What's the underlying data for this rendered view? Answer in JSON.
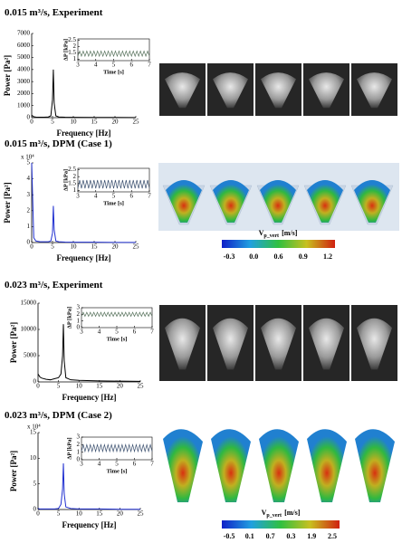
{
  "chart_data": [
    {
      "type": "line",
      "title": "0.015 m³/s, Experiment",
      "xlabel": "Frequency [Hz]",
      "ylabel": "Power [Pa²]",
      "x": [
        0,
        0.5,
        1,
        2,
        3,
        4,
        4.6,
        5.0,
        5.2,
        5.4,
        5.8,
        6.5,
        8,
        10,
        15,
        20,
        25
      ],
      "series": [
        {
          "color": "#000000",
          "values": [
            200,
            80,
            50,
            40,
            40,
            60,
            150,
            1500,
            4000,
            1200,
            150,
            60,
            40,
            30,
            20,
            15,
            10
          ]
        }
      ],
      "xlim": [
        0,
        25
      ],
      "xticks": [
        0,
        5,
        10,
        15,
        20,
        25
      ],
      "ylim": [
        0,
        7000
      ],
      "yticks": [
        0,
        1000,
        2000,
        3000,
        4000,
        5000,
        6000,
        7000
      ]
    },
    {
      "type": "line",
      "xlabel": "Time [s]",
      "ylabel": "ΔP [kPa]",
      "x": [
        3,
        3.1,
        3.2,
        3.3,
        3.4,
        3.5,
        3.6,
        3.7,
        3.8,
        3.9,
        4,
        4.1,
        4.2,
        4.3,
        4.4,
        4.5,
        4.6,
        4.7,
        4.8,
        4.9,
        5,
        5.1,
        5.2,
        5.3,
        5.4,
        5.5,
        5.6,
        5.7,
        5.8,
        5.9,
        6,
        6.1,
        6.2,
        6.3,
        6.4,
        6.5,
        6.6,
        6.7,
        6.8,
        6.9,
        7
      ],
      "series": [
        {
          "color": "#55705a",
          "values": [
            1.25,
            1.65,
            1.25,
            1.65,
            1.25,
            1.65,
            1.25,
            1.65,
            1.25,
            1.65,
            1.25,
            1.65,
            1.25,
            1.65,
            1.25,
            1.65,
            1.25,
            1.65,
            1.25,
            1.65,
            1.25,
            1.65,
            1.25,
            1.65,
            1.25,
            1.65,
            1.25,
            1.65,
            1.25,
            1.65,
            1.25,
            1.65,
            1.25,
            1.65,
            1.25,
            1.65,
            1.25,
            1.65,
            1.25,
            1.65,
            1.25
          ]
        }
      ],
      "xlim": [
        3,
        7
      ],
      "xticks": [
        3,
        4,
        5,
        6,
        7
      ],
      "ylim": [
        0.9,
        2.6
      ],
      "yticks": [
        1,
        1.5,
        2,
        2.5
      ]
    },
    {
      "type": "line",
      "title": "0.015 m³/s, DPM (Case 1)",
      "xlabel": "Frequency [Hz]",
      "ylabel": "Power [Pa²]",
      "y_multiplier": "x 10⁴",
      "x": [
        0,
        0.5,
        1,
        2,
        3,
        4,
        4.6,
        5.0,
        5.2,
        5.4,
        5.8,
        6.5,
        8,
        10,
        15,
        20,
        25
      ],
      "series": [
        {
          "color": "#1f2fd0",
          "values": [
            5,
            0.3,
            0.1,
            0.05,
            0.05,
            0.05,
            0.1,
            0.6,
            2.3,
            0.8,
            0.1,
            0.05,
            0.03,
            0.02,
            0.02,
            0.01,
            0.01
          ]
        }
      ],
      "xlim": [
        0,
        25
      ],
      "xticks": [
        0,
        5,
        10,
        15,
        20,
        25
      ],
      "ylim": [
        0,
        5
      ],
      "yticks": [
        0,
        1,
        2,
        3,
        4,
        5
      ]
    },
    {
      "type": "line",
      "xlabel": "Time [s]",
      "ylabel": "ΔP [kPa]",
      "x": [
        3,
        3.1,
        3.2,
        3.3,
        3.4,
        3.5,
        3.6,
        3.7,
        3.8,
        3.9,
        4,
        4.1,
        4.2,
        4.3,
        4.4,
        4.5,
        4.6,
        4.7,
        4.8,
        4.9,
        5,
        5.1,
        5.2,
        5.3,
        5.4,
        5.5,
        5.6,
        5.7,
        5.8,
        5.9,
        6,
        6.1,
        6.2,
        6.3,
        6.4,
        6.5,
        6.6,
        6.7,
        6.8,
        6.9,
        7
      ],
      "series": [
        {
          "color": "#3a4f6e",
          "values": [
            1.15,
            1.75,
            1.15,
            1.75,
            1.15,
            1.75,
            1.15,
            1.75,
            1.15,
            1.75,
            1.15,
            1.75,
            1.15,
            1.75,
            1.15,
            1.75,
            1.15,
            1.75,
            1.15,
            1.75,
            1.15,
            1.75,
            1.15,
            1.75,
            1.15,
            1.75,
            1.15,
            1.75,
            1.15,
            1.75,
            1.15,
            1.75,
            1.15,
            1.75,
            1.15,
            1.75,
            1.15,
            1.75,
            1.15,
            1.75,
            1.15
          ]
        }
      ],
      "xlim": [
        3,
        7
      ],
      "xticks": [
        3,
        4,
        5,
        6,
        7
      ],
      "ylim": [
        0.9,
        2.6
      ],
      "yticks": [
        1,
        1.5,
        2,
        2.5
      ]
    },
    {
      "type": "line",
      "title": "0.023 m³/s, Experiment",
      "xlabel": "Frequency [Hz]",
      "ylabel": "Power [Pa²]",
      "x": [
        0,
        0.5,
        1,
        2,
        3,
        4,
        5,
        5.6,
        6,
        6.2,
        6.4,
        6.8,
        8,
        10,
        15,
        20,
        25
      ],
      "series": [
        {
          "color": "#000000",
          "values": [
            1500,
            900,
            700,
            500,
            400,
            600,
            800,
            1500,
            5000,
            11000,
            4000,
            800,
            400,
            300,
            200,
            150,
            100
          ]
        }
      ],
      "xlim": [
        0,
        25
      ],
      "xticks": [
        0,
        5,
        10,
        15,
        20,
        25
      ],
      "ylim": [
        0,
        15000
      ],
      "yticks": [
        0,
        5000,
        10000,
        15000
      ]
    },
    {
      "type": "line",
      "xlabel": "Time [s]",
      "ylabel": "ΔP [kPa]",
      "x": [
        3,
        3.1,
        3.2,
        3.3,
        3.4,
        3.5,
        3.6,
        3.7,
        3.8,
        3.9,
        4,
        4.1,
        4.2,
        4.3,
        4.4,
        4.5,
        4.6,
        4.7,
        4.8,
        4.9,
        5,
        5.1,
        5.2,
        5.3,
        5.4,
        5.5,
        5.6,
        5.7,
        5.8,
        5.9,
        6,
        6.1,
        6.2,
        6.3,
        6.4,
        6.5,
        6.6,
        6.7,
        6.8,
        6.9,
        7
      ],
      "series": [
        {
          "color": "#55705a",
          "values": [
            1.7,
            2.3,
            1.7,
            2.3,
            1.7,
            2.3,
            1.7,
            2.3,
            1.7,
            2.3,
            1.7,
            2.3,
            1.7,
            2.3,
            1.7,
            2.3,
            1.7,
            2.3,
            1.7,
            2.3,
            1.7,
            2.3,
            1.7,
            2.3,
            1.7,
            2.3,
            1.7,
            2.3,
            1.7,
            2.3,
            1.7,
            2.3,
            1.7,
            2.3,
            1.7,
            2.3,
            1.7,
            2.3,
            1.7,
            2.3,
            1.7
          ]
        }
      ],
      "xlim": [
        3,
        7
      ],
      "xticks": [
        3,
        4,
        5,
        6,
        7
      ],
      "ylim": [
        0,
        3
      ],
      "yticks": [
        0,
        1,
        2,
        3
      ]
    },
    {
      "type": "line",
      "title": "0.023 m³/s, DPM (Case 2)",
      "xlabel": "Frequency [Hz]",
      "ylabel": "Power [Pa²]",
      "y_multiplier": "x 10⁴",
      "x": [
        0,
        0.5,
        1,
        2,
        3,
        4,
        5,
        5.6,
        6,
        6.2,
        6.4,
        6.8,
        8,
        10,
        15,
        20,
        25
      ],
      "series": [
        {
          "color": "#1f2fd0",
          "values": [
            0.2,
            0.1,
            0.1,
            0.1,
            0.1,
            0.1,
            0.2,
            1,
            4,
            9,
            3,
            0.5,
            0.2,
            0.1,
            0.1,
            0.05,
            0.05
          ]
        }
      ],
      "xlim": [
        0,
        25
      ],
      "xticks": [
        0,
        5,
        10,
        15,
        20,
        25
      ],
      "ylim": [
        0,
        15
      ],
      "yticks": [
        0,
        5,
        10,
        15
      ]
    },
    {
      "type": "line",
      "xlabel": "Time [s]",
      "ylabel": "ΔP [kPa]",
      "x": [
        3,
        3.1,
        3.2,
        3.3,
        3.4,
        3.5,
        3.6,
        3.7,
        3.8,
        3.9,
        4,
        4.1,
        4.2,
        4.3,
        4.4,
        4.5,
        4.6,
        4.7,
        4.8,
        4.9,
        5,
        5.1,
        5.2,
        5.3,
        5.4,
        5.5,
        5.6,
        5.7,
        5.8,
        5.9,
        6,
        6.1,
        6.2,
        6.3,
        6.4,
        6.5,
        6.6,
        6.7,
        6.8,
        6.9,
        7
      ],
      "series": [
        {
          "color": "#3a4f6e",
          "values": [
            1.1,
            2.0,
            1.1,
            2.0,
            1.1,
            2.0,
            1.1,
            2.0,
            1.1,
            2.0,
            1.1,
            2.0,
            1.1,
            2.0,
            1.1,
            2.0,
            1.1,
            2.0,
            1.1,
            2.0,
            1.1,
            2.0,
            1.1,
            2.0,
            1.1,
            2.0,
            1.1,
            2.0,
            1.1,
            2.0,
            1.1,
            2.0,
            1.1,
            2.0,
            1.1,
            2.0,
            1.1,
            2.0,
            1.1,
            2.0,
            1.1
          ]
        }
      ],
      "xlim": [
        3,
        7
      ],
      "xticks": [
        3,
        4,
        5,
        6,
        7
      ],
      "ylim": [
        0,
        3
      ],
      "yticks": [
        0,
        1,
        2,
        3
      ]
    }
  ],
  "colorbars": [
    {
      "symbol": "V",
      "subscript": "p_vert",
      "unit": "[m/s]",
      "tick_labels": [
        "-0.3",
        "0.0",
        "0.6",
        "0.9",
        "1.2"
      ]
    },
    {
      "symbol": "V",
      "subscript": "p_vert",
      "unit": "[m/s]",
      "tick_labels": [
        "-0.5",
        "0.1",
        "0.7",
        "0.3",
        "1.9",
        "2.5"
      ]
    }
  ]
}
